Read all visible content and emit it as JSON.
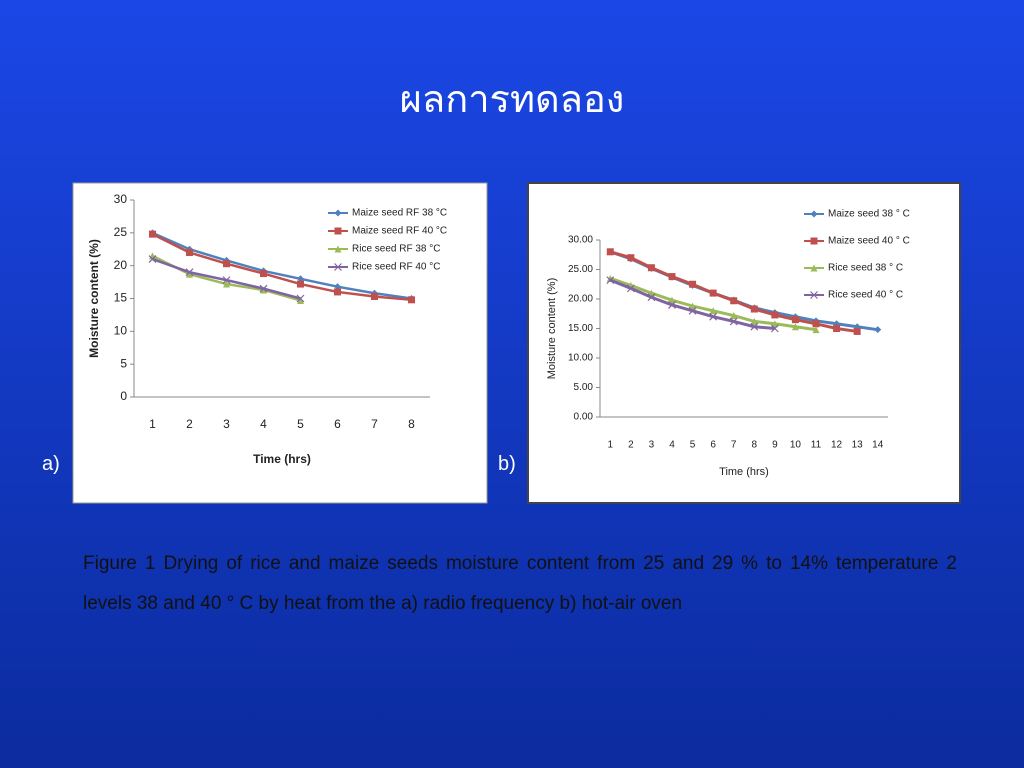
{
  "slide": {
    "title": "ผลการทดลอง",
    "caption": "Figure 1 Drying of rice and maize seeds moisture content from 25 and 29 % to 14% temperature 2 levels 38 and 40 ° C by heat from the    a) radio frequency  b) hot-air oven",
    "panel_labels": [
      "a)",
      "b)"
    ]
  },
  "chart_data": [
    {
      "type": "line",
      "x_label": "Time (hrs)",
      "y_label": "Moisture content (%)",
      "categories": [
        "1",
        "2",
        "3",
        "4",
        "5",
        "6",
        "7",
        "8"
      ],
      "ylim": [
        0,
        30
      ],
      "yticks": [
        0,
        5,
        10,
        15,
        20,
        25,
        30
      ],
      "grid": false,
      "legend": "top-right",
      "series": [
        {
          "name": "Maize seed RF 38 °C",
          "color": "#4f81bd",
          "values": [
            25,
            22.5,
            20.8,
            19.2,
            18,
            16.8,
            15.8,
            15
          ]
        },
        {
          "name": "Maize seed RF 40 °C",
          "color": "#c0504d",
          "values": [
            24.8,
            22,
            20.3,
            18.8,
            17.2,
            16,
            15.3,
            14.8
          ]
        },
        {
          "name": "Rice seed RF 38 °C",
          "color": "#9bbb59",
          "values": [
            21.5,
            18.7,
            17.2,
            16.3,
            14.7,
            null,
            null,
            null
          ]
        },
        {
          "name": "Rice seed RF 40 °C",
          "color": "#8064a2",
          "values": [
            21,
            19,
            17.8,
            16.5,
            15,
            null,
            null,
            null
          ]
        }
      ]
    },
    {
      "type": "line",
      "x_label": "Time (hrs)",
      "y_label": "Moisture content (%)",
      "categories": [
        "1",
        "2",
        "3",
        "4",
        "5",
        "6",
        "7",
        "8",
        "9",
        "10",
        "11",
        "12",
        "13",
        "14"
      ],
      "ylim": [
        0,
        30
      ],
      "yticks": [
        {
          "value": 0,
          "label": "0.00"
        },
        {
          "value": 5,
          "label": "5.00"
        },
        {
          "value": 10,
          "label": "10.00"
        },
        {
          "value": 15,
          "label": "15.00"
        },
        {
          "value": 20,
          "label": "20.00"
        },
        {
          "value": 25,
          "label": "25.00"
        },
        {
          "value": 30,
          "label": "30.00"
        }
      ],
      "grid": false,
      "legend": "top-right",
      "series": [
        {
          "name": "Maize seed 38 ° C",
          "color": "#4f81bd",
          "values": [
            28,
            26.8,
            25.2,
            23.7,
            22.3,
            21,
            19.8,
            18.5,
            17.7,
            17,
            16.3,
            15.8,
            15.3,
            14.8
          ]
        },
        {
          "name": "Maize seed 40 ° C",
          "color": "#c0504d",
          "values": [
            28,
            27,
            25.3,
            23.8,
            22.5,
            21,
            19.7,
            18.3,
            17.3,
            16.5,
            15.8,
            15,
            14.5,
            null
          ]
        },
        {
          "name": "Rice seed 38 ° C",
          "color": "#9bbb59",
          "values": [
            23.5,
            22.3,
            21,
            19.8,
            18.8,
            18,
            17.2,
            16.2,
            15.8,
            15.3,
            14.8,
            null,
            null,
            null
          ]
        },
        {
          "name": "Rice seed 40 ° C",
          "color": "#8064a2",
          "values": [
            23.2,
            21.8,
            20.3,
            19,
            18,
            17,
            16.2,
            15.3,
            15,
            null,
            null,
            null,
            null,
            null
          ]
        }
      ]
    }
  ]
}
